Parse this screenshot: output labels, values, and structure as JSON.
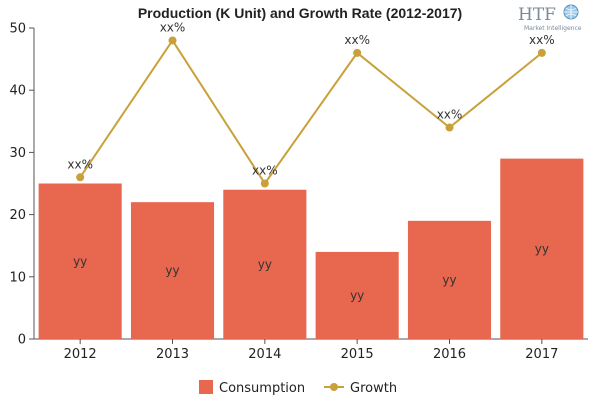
{
  "chart_data": {
    "type": "bar",
    "title": "Production (K Unit) and Growth Rate (2012-2017)",
    "categories": [
      "2012",
      "2013",
      "2014",
      "2015",
      "2016",
      "2017"
    ],
    "ylim": [
      0,
      50
    ],
    "yticks": [
      0,
      10,
      20,
      30,
      40,
      50
    ],
    "xlabel": "",
    "ylabel": "",
    "grid": false,
    "legend_position": "bottom",
    "series": [
      {
        "name": "Consumption",
        "type": "bar",
        "color": "#e8674f",
        "values": [
          25,
          22,
          24,
          14,
          19,
          29
        ],
        "labels": [
          "yy",
          "yy",
          "yy",
          "yy",
          "yy",
          "yy"
        ]
      },
      {
        "name": "Growth",
        "type": "line",
        "color": "#c9a13a",
        "values": [
          26,
          48,
          25,
          46,
          34,
          46
        ],
        "labels": [
          "xx%",
          "xx%",
          "xx%",
          "xx%",
          "xx%",
          "xx%"
        ]
      }
    ]
  },
  "logo": {
    "brand": "HTF",
    "tagline": "Market Intelligence",
    "icon": "globe-icon"
  }
}
